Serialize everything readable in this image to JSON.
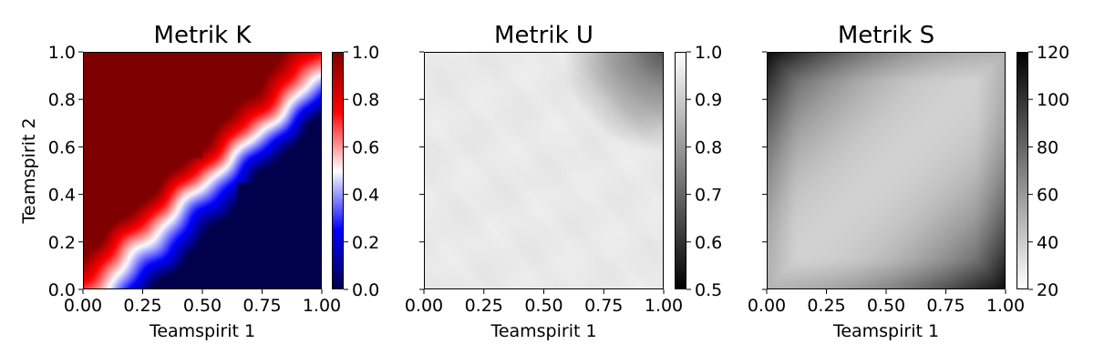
{
  "chart_data": [
    {
      "type": "heatmap",
      "title": "Metrik K",
      "xlabel": "Teamspirit 1",
      "ylabel": "Teamspirit 2",
      "xlim": [
        0,
        1
      ],
      "ylim": [
        0,
        1
      ],
      "xticks": [
        "0.00",
        "0.25",
        "0.50",
        "0.75",
        "1.00"
      ],
      "yticks": [
        "0.0",
        "0.2",
        "0.4",
        "0.6",
        "0.8",
        "1.0"
      ],
      "colormap": "seismic",
      "colorbar": {
        "range": [
          0.0,
          1.0
        ],
        "ticks": [
          "0.0",
          "0.2",
          "0.4",
          "0.6",
          "0.8",
          "1.0"
        ],
        "colors": [
          "#00004c",
          "#0000ff",
          "#ffffff",
          "#ff0000",
          "#7f0000"
        ]
      },
      "grid": false
    },
    {
      "type": "heatmap",
      "title": "Metrik U",
      "xlabel": "Teamspirit 1",
      "ylabel": "",
      "xlim": [
        0,
        1
      ],
      "ylim": [
        0,
        1
      ],
      "xticks": [
        "0.00",
        "0.25",
        "0.50",
        "0.75",
        "1.00"
      ],
      "colormap": "gray",
      "colorbar": {
        "range": [
          0.5,
          1.0
        ],
        "ticks": [
          "0.5",
          "0.6",
          "0.7",
          "0.8",
          "0.9",
          "1.0"
        ],
        "colors": [
          "#000000",
          "#ffffff"
        ]
      },
      "grid": false
    },
    {
      "type": "heatmap",
      "title": "Metrik S",
      "xlabel": "Teamspirit 1",
      "ylabel": "",
      "xlim": [
        0,
        1
      ],
      "ylim": [
        0,
        1
      ],
      "xticks": [
        "0.00",
        "0.25",
        "0.50",
        "0.75",
        "1.00"
      ],
      "colormap": "gray_r",
      "colorbar": {
        "range": [
          20,
          120
        ],
        "ticks": [
          "20",
          "40",
          "60",
          "80",
          "100",
          "120"
        ],
        "colors": [
          "#ffffff",
          "#000000"
        ]
      },
      "grid": false
    }
  ]
}
